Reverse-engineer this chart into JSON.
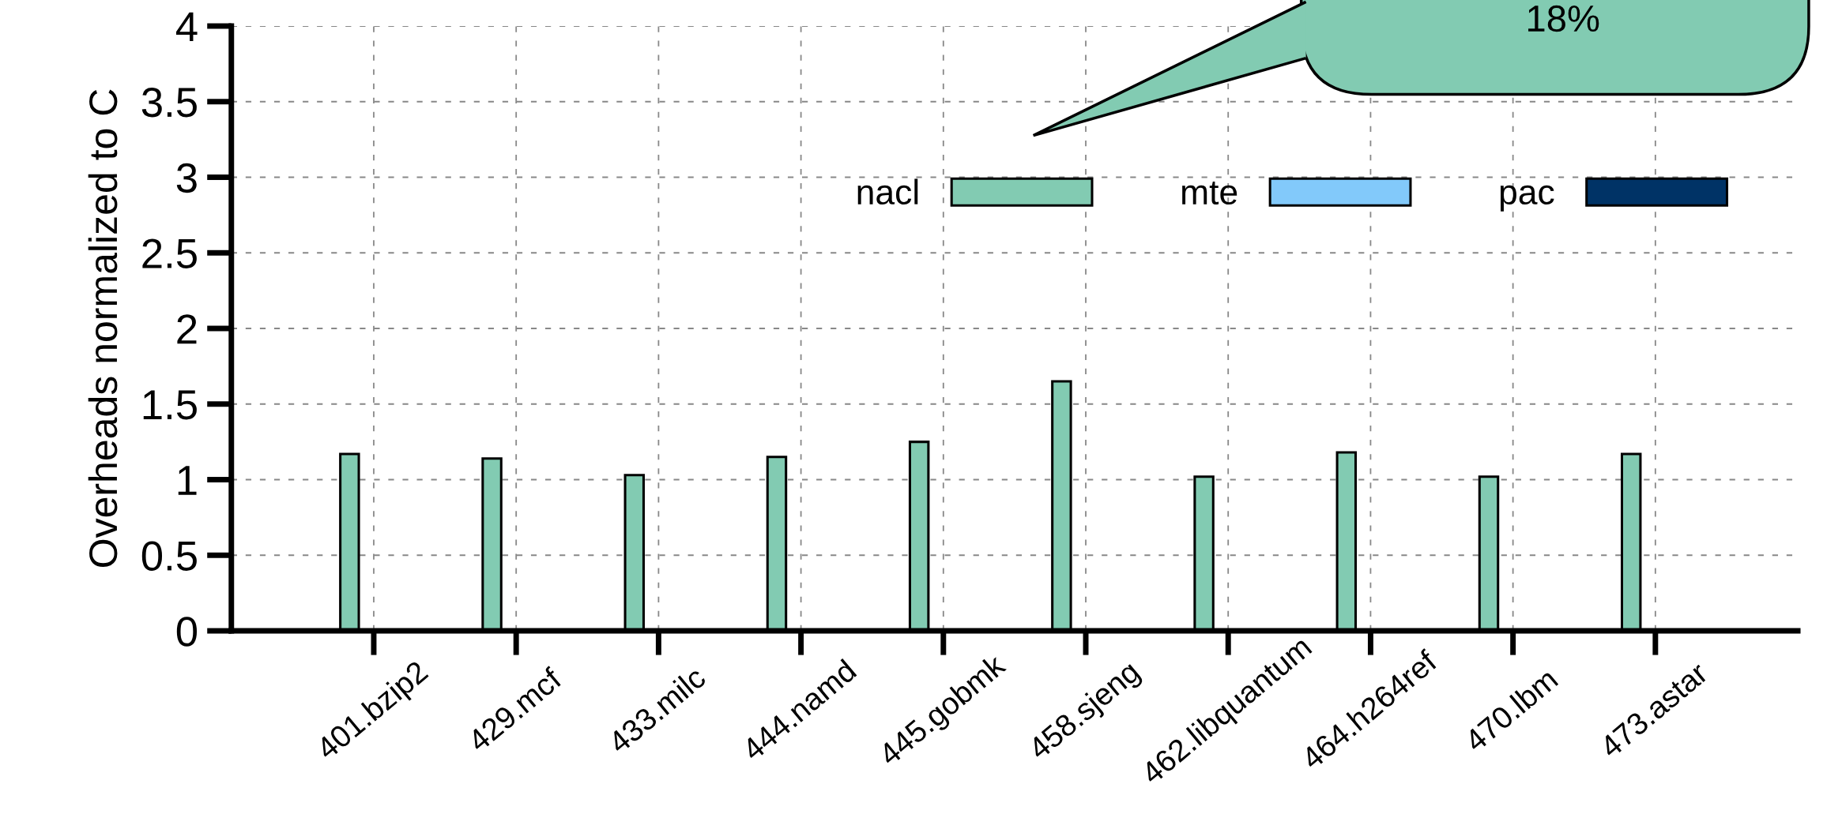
{
  "chart_data": {
    "type": "bar",
    "ylabel": "Overheads normalized to C",
    "categories": [
      "401.bzip2",
      "429.mcf",
      "433.milc",
      "444.namd",
      "445.gobmk",
      "458.sjeng",
      "462.libquantum",
      "464.h264ref",
      "470.lbm",
      "473.astar"
    ],
    "series": [
      {
        "name": "nacl",
        "color": "#82cbb2",
        "values": [
          1.17,
          1.14,
          1.03,
          1.15,
          1.25,
          1.65,
          1.02,
          1.18,
          1.02,
          1.17
        ]
      },
      {
        "name": "mte",
        "color": "#82c9fa",
        "values": [
          null,
          null,
          null,
          null,
          null,
          null,
          null,
          null,
          null,
          null
        ]
      },
      {
        "name": "pac",
        "color": "#003366",
        "values": [
          null,
          null,
          null,
          null,
          null,
          null,
          null,
          null,
          null,
          null
        ]
      }
    ],
    "ylim": [
      0,
      4
    ],
    "yticks": [
      0,
      0.5,
      1,
      1.5,
      2,
      2.5,
      3,
      3.5,
      4
    ],
    "grid": true,
    "legend": "top right",
    "annotations": [
      "18%"
    ]
  }
}
